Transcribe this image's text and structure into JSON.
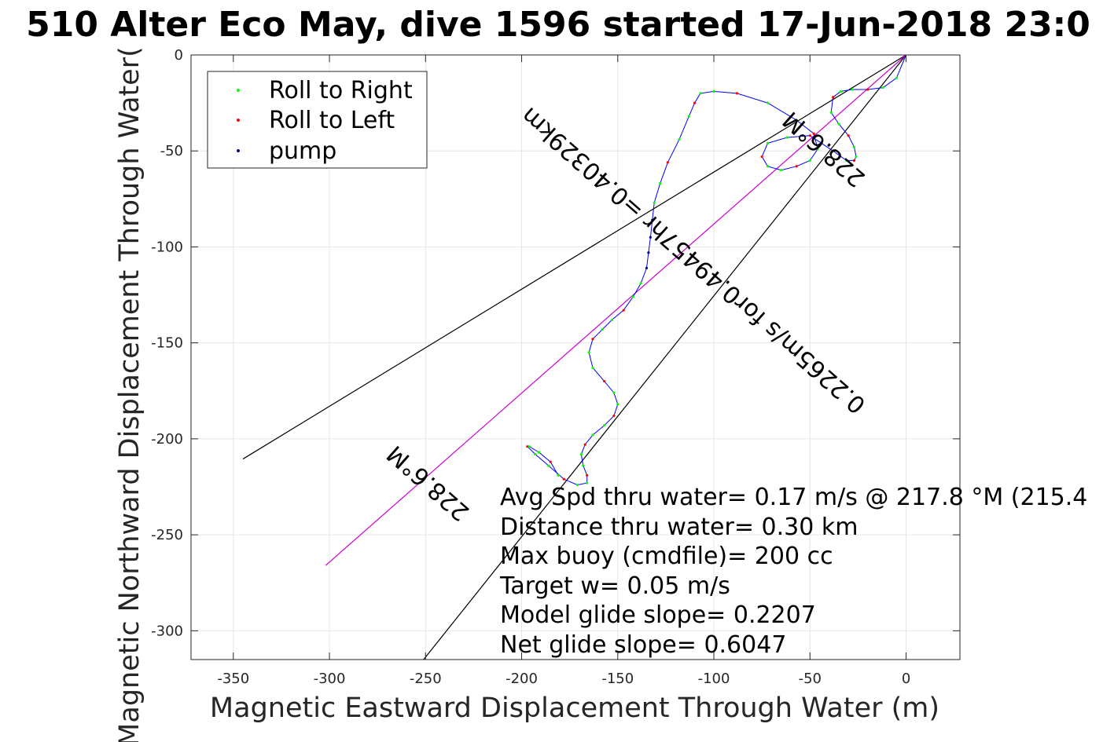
{
  "chart_data": {
    "type": "line",
    "title": "510 Alter Eco May, dive 1596 started 17-Jun-2018 23:0",
    "xlabel": "Magnetic Eastward Displacement Through Water (m)",
    "ylabel": "Magnetic Northward Displacement Through Water(",
    "xlim": [
      -372,
      28
    ],
    "ylim": [
      -315,
      0
    ],
    "xticks": [
      -350,
      -300,
      -250,
      -200,
      -150,
      -100,
      -50,
      0
    ],
    "yticks": [
      0,
      -50,
      -100,
      -150,
      -200,
      -250,
      -300
    ],
    "grid": true,
    "legend_position": "top-left",
    "legend": [
      {
        "label": "Roll to Right",
        "color": "#00ff00"
      },
      {
        "label": "Roll to Left",
        "color": "#ff0000"
      },
      {
        "label": "pump",
        "color": "#000080"
      }
    ],
    "reference_lines": [
      {
        "x": [
          0,
          -345
        ],
        "y": [
          0,
          -210.5
        ],
        "color": "#000000"
      },
      {
        "x": [
          0,
          -251
        ],
        "y": [
          0,
          -315
        ],
        "color": "#000000"
      },
      {
        "x": [
          0,
          -302
        ],
        "y": [
          0,
          -266
        ],
        "color": "#cc00cc"
      }
    ],
    "track": {
      "color": "#0000ff",
      "x": [
        0,
        -5,
        -12,
        -20,
        -28,
        -34,
        -38,
        -39,
        -35,
        -30,
        -27,
        -26,
        -27,
        -31,
        -38,
        -50,
        -62,
        -72,
        -75,
        -72,
        -65,
        -57,
        -50,
        -46,
        -48,
        -57,
        -72,
        -88,
        -100,
        -107,
        -110,
        -113,
        -118,
        -124,
        -128,
        -131,
        -132,
        -133,
        -134,
        -135,
        -138,
        -142,
        -147,
        -153,
        -158,
        -163,
        -165,
        -163,
        -157,
        -152,
        -150,
        -152,
        -157,
        -163,
        -167,
        -169,
        -168,
        -166,
        -166,
        -171,
        -178,
        -186,
        -193,
        -197,
        -196,
        -191,
        -185,
        -181
      ],
      "y": [
        0,
        -12,
        -17,
        -18,
        -18,
        -19,
        -22,
        -30,
        -36,
        -42,
        -48,
        -53,
        -55,
        -55,
        -50,
        -42,
        -43,
        -46,
        -53,
        -58,
        -60,
        -58,
        -55,
        -49,
        -41,
        -34,
        -25,
        -20,
        -19,
        -20,
        -25,
        -32,
        -44,
        -56,
        -67,
        -77,
        -86,
        -95,
        -103,
        -111,
        -119,
        -126,
        -133,
        -138,
        -143,
        -148,
        -155,
        -163,
        -170,
        -176,
        -182,
        -188,
        -193,
        -198,
        -203,
        -208,
        -214,
        -219,
        -223,
        -224,
        -221,
        -214,
        -208,
        -204,
        -204,
        -207,
        -212,
        -219
      ]
    },
    "annotations": [
      {
        "text": "228.6°M",
        "x": -40,
        "y": -46,
        "rotate": 221.4
      },
      {
        "text": "0.2265m/s for0.49457hr =0.40329km",
        "x": -108,
        "y": -104,
        "rotate": 221.4
      },
      {
        "text": "228.6°M",
        "x": -246,
        "y": -220,
        "rotate": 221.4
      }
    ],
    "stats": [
      "Avg Spd thru water=  0.17 m/s @ 217.8 °M (215.4",
      "Distance thru water=  0.30 km",
      "Max buoy (cmdfile)= 200 cc",
      "Target w= 0.05 m/s",
      "Model glide slope= 0.2207",
      "Net glide slope= 0.6047"
    ]
  }
}
